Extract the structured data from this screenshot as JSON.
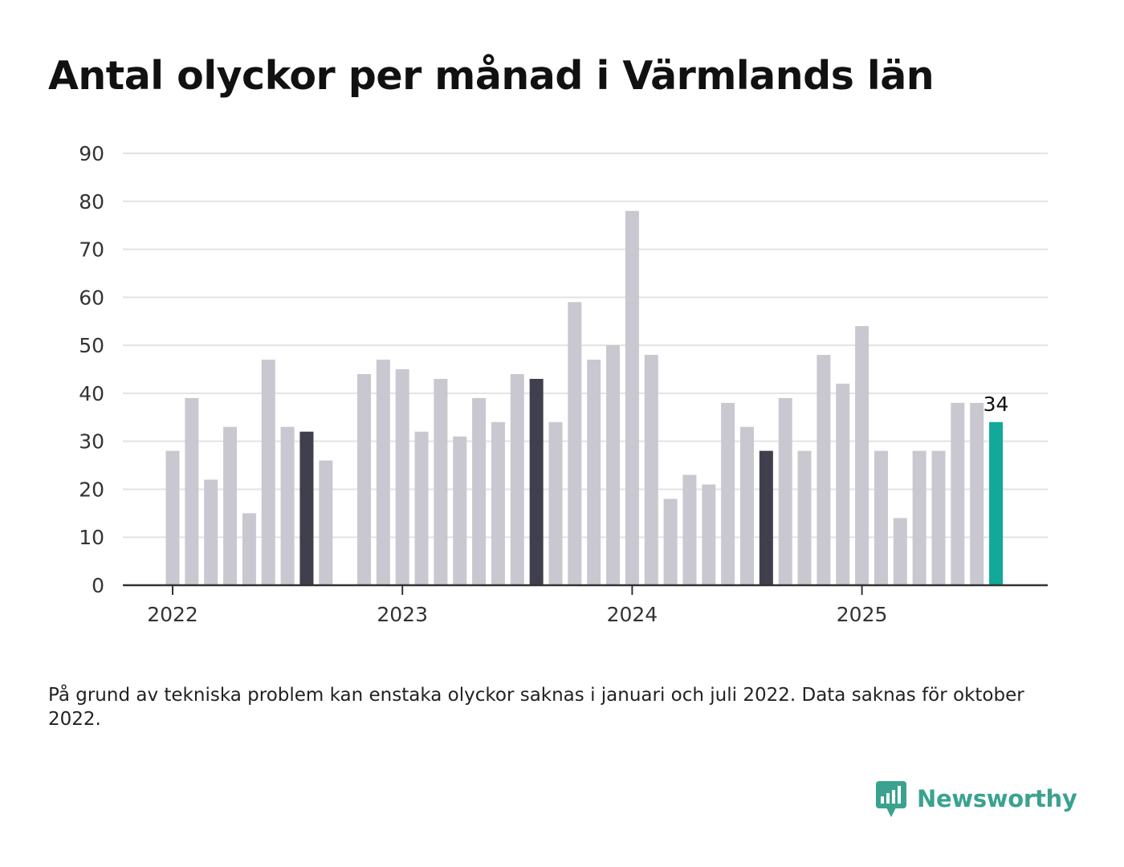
{
  "title": "Antal olyckor per månad i Värmlands län",
  "note": "På grund av tekniska problem kan enstaka olyckor saknas i januari och juli 2022. Data saknas för oktober 2022.",
  "brand": {
    "name": "Newsworthy",
    "logo_icon": "newsworthy-chart-bubble-icon"
  },
  "colors": {
    "default_bar": "#c9c8d1",
    "highlight_bar": "#3f3f4d",
    "latest_bar": "#12a89a",
    "grid": "#e3e3e3",
    "axis": "#333333",
    "brand": "#3aa28f"
  },
  "chart_data": {
    "type": "bar",
    "title": "Antal olyckor per månad i Värmlands län",
    "xlabel": "",
    "ylabel": "",
    "ylim": [
      0,
      90
    ],
    "yticks": [
      "0",
      "10",
      "20",
      "30",
      "40",
      "50",
      "60",
      "70",
      "80",
      "90"
    ],
    "xticks": [
      "2022",
      "2023",
      "2024",
      "2025"
    ],
    "grid": true,
    "categories": [
      "2022-01",
      "2022-02",
      "2022-03",
      "2022-04",
      "2022-05",
      "2022-06",
      "2022-07",
      "2022-08",
      "2022-09",
      "2022-10",
      "2022-11",
      "2022-12",
      "2023-01",
      "2023-02",
      "2023-03",
      "2023-04",
      "2023-05",
      "2023-06",
      "2023-07",
      "2023-08",
      "2023-09",
      "2023-10",
      "2023-11",
      "2023-12",
      "2024-01",
      "2024-02",
      "2024-03",
      "2024-04",
      "2024-05",
      "2024-06",
      "2024-07",
      "2024-08",
      "2024-09",
      "2024-10",
      "2024-11",
      "2024-12",
      "2025-01",
      "2025-02",
      "2025-03",
      "2025-04",
      "2025-05",
      "2025-06",
      "2025-07",
      "2025-08"
    ],
    "values": [
      28,
      39,
      22,
      33,
      15,
      47,
      33,
      32,
      26,
      null,
      44,
      47,
      45,
      32,
      43,
      31,
      39,
      34,
      44,
      43,
      34,
      59,
      47,
      50,
      78,
      48,
      18,
      23,
      21,
      38,
      33,
      28,
      39,
      28,
      48,
      42,
      54,
      28,
      14,
      28,
      28,
      38,
      38,
      34
    ],
    "highlighted": [
      "2022-08",
      "2023-08",
      "2024-08"
    ],
    "latest": "2025-08",
    "data_labels": [
      {
        "category": "2025-08",
        "text": "34"
      }
    ]
  }
}
